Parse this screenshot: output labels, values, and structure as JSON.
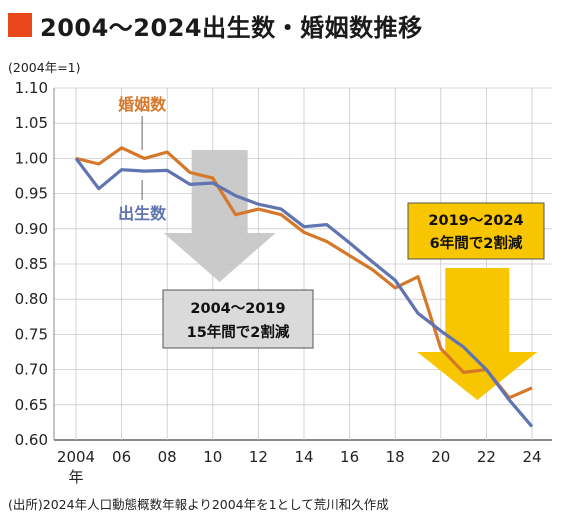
{
  "title": "2004〜2024出生数・婚姻数推移",
  "colors": {
    "title_square": "#e8471c",
    "births": "#5f74b0",
    "marriages": "#d6782a",
    "gray_arrow": "#c6c6c6",
    "yellow_arrow": "#f7c600",
    "yellow_box": "#f7c600",
    "gray_box": "#dadada"
  },
  "source_note": "(出所)2024年人口動態概数年報より2004年を1として荒川和久作成",
  "chart_data": {
    "type": "line",
    "unit_label": "(2004年=1)",
    "x": [
      2004,
      2005,
      2006,
      2007,
      2008,
      2009,
      2010,
      2011,
      2012,
      2013,
      2014,
      2015,
      2016,
      2017,
      2018,
      2019,
      2020,
      2021,
      2022,
      2023,
      2024
    ],
    "x_tick_values": [
      2004,
      2006,
      2008,
      2010,
      2012,
      2014,
      2016,
      2018,
      2020,
      2022,
      2024
    ],
    "x_tick_labels": [
      "2004",
      "06",
      "08",
      "10",
      "12",
      "14",
      "16",
      "18",
      "20",
      "22",
      "24"
    ],
    "x_first_sublabel": "年",
    "ylim": [
      0.6,
      1.1
    ],
    "y_ticks": [
      "1.10",
      "1.05",
      "1.00",
      "0.95",
      "0.90",
      "0.85",
      "0.80",
      "0.75",
      "0.70",
      "0.65",
      "0.60"
    ],
    "grid": true,
    "series": [
      {
        "name": "婚姻数",
        "color": "#d6782a",
        "values": [
          1.0,
          0.992,
          1.015,
          1.0,
          1.009,
          0.98,
          0.972,
          0.92,
          0.928,
          0.92,
          0.895,
          0.882,
          0.862,
          0.842,
          0.816,
          0.832,
          0.73,
          0.696,
          0.7,
          0.66,
          0.674
        ]
      },
      {
        "name": "出生数",
        "color": "#5f74b0",
        "values": [
          1.0,
          0.957,
          0.984,
          0.982,
          0.983,
          0.963,
          0.965,
          0.947,
          0.935,
          0.928,
          0.903,
          0.906,
          0.88,
          0.853,
          0.827,
          0.78,
          0.755,
          0.732,
          0.7,
          0.657,
          0.619
        ]
      }
    ],
    "annotations": [
      {
        "id": "gray",
        "line1": "2004〜2019",
        "line2": "15年間で2割減"
      },
      {
        "id": "yellow",
        "line1": "2019〜2024",
        "line2": "6年間で2割減"
      }
    ]
  }
}
